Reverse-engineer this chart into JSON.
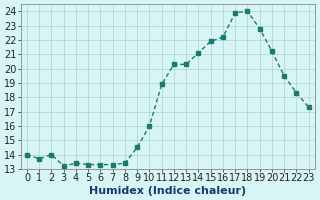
{
  "x": [
    0,
    1,
    2,
    3,
    4,
    5,
    6,
    7,
    8,
    9,
    10,
    11,
    12,
    13,
    14,
    15,
    16,
    17,
    18,
    19,
    20,
    21,
    22,
    23
  ],
  "y": [
    14,
    13.7,
    14,
    13.2,
    13.4,
    13.3,
    13.3,
    13.3,
    13.4,
    14.5,
    16,
    18.9,
    20.3,
    20.3,
    21.1,
    21.9,
    22.2,
    23.9,
    24.0,
    22.8,
    21.2,
    19.5,
    18.3,
    17.3
  ],
  "line_color": "#1a7a6e",
  "marker_color": "#1a7a6e",
  "bg_color": "#d8f5f5",
  "grid_color": "#b0d8d8",
  "xlabel": "Humidex (Indice chaleur)",
  "ylabel_ticks": [
    13,
    14,
    15,
    16,
    17,
    18,
    19,
    20,
    21,
    22,
    23,
    24
  ],
  "xlim": [
    -0.5,
    23.5
  ],
  "ylim": [
    13,
    24.5
  ],
  "xlabel_fontsize": 8,
  "tick_fontsize": 7
}
